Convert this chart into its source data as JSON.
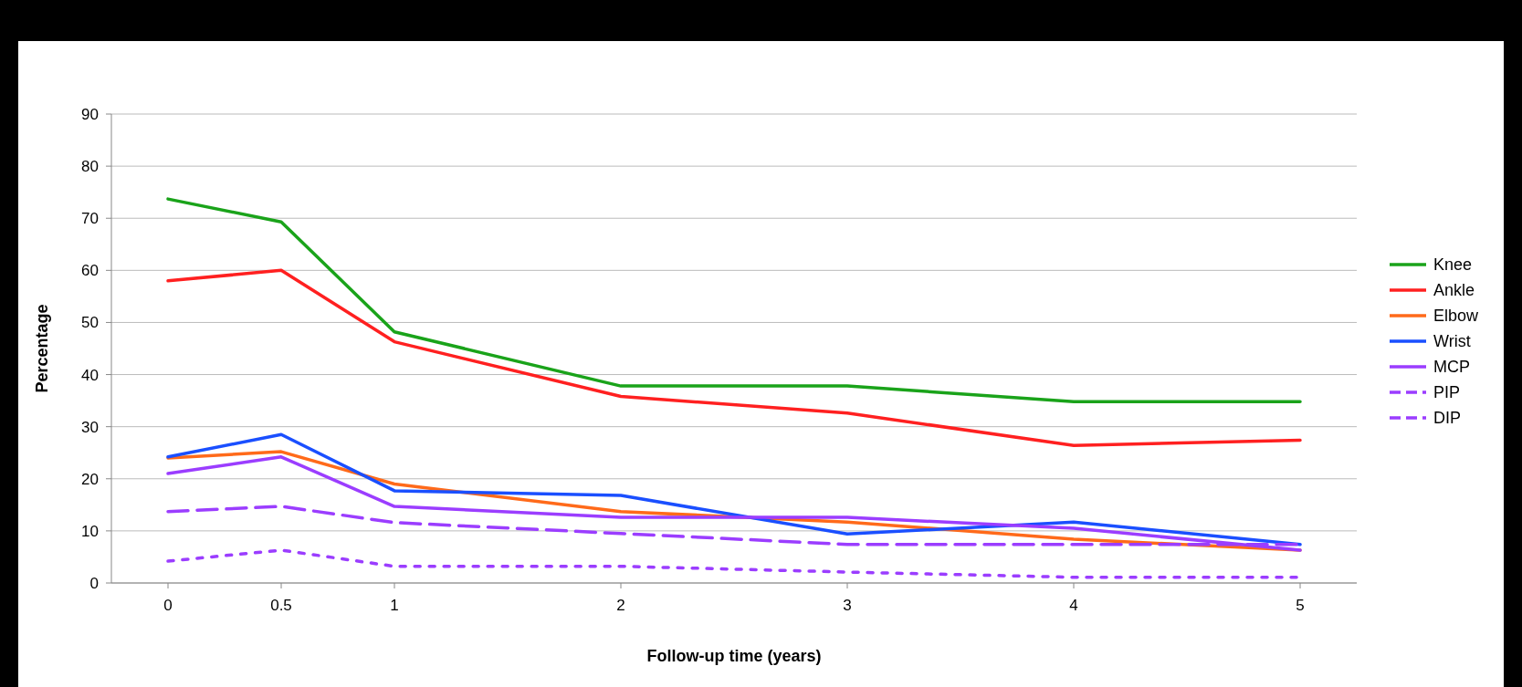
{
  "chart_data": {
    "type": "line",
    "xlabel": "Follow-up time (years)",
    "ylabel": "Percentage",
    "x": [
      0,
      0.5,
      1,
      2,
      3,
      4,
      5
    ],
    "xlim": [
      -0.25,
      5.25
    ],
    "xticks": [
      0,
      0.5,
      1,
      2,
      3,
      4,
      5
    ],
    "ylim": [
      0,
      90
    ],
    "yticks": [
      0,
      10,
      20,
      30,
      40,
      50,
      60,
      70,
      80,
      90
    ],
    "grid": "y",
    "legend": "right",
    "marker": "none",
    "series": [
      {
        "name": "Knee",
        "color": "#1aa31a",
        "line_style": "solid",
        "values": [
          73.7,
          69.3,
          48.2,
          37.8,
          37.8,
          34.8,
          34.8
        ]
      },
      {
        "name": "Ankle",
        "color": "#ff2020",
        "line_style": "solid",
        "values": [
          58,
          60,
          46.3,
          35.8,
          32.6,
          26.4,
          27.4
        ]
      },
      {
        "name": "Elbow",
        "color": "#ff6a1a",
        "line_style": "solid",
        "values": [
          24,
          25.2,
          19,
          13.7,
          11.7,
          8.4,
          6.3
        ]
      },
      {
        "name": "Wrist",
        "color": "#1a4fff",
        "line_style": "solid",
        "values": [
          24.2,
          28.5,
          17.7,
          16.8,
          9.4,
          11.7,
          7.4
        ]
      },
      {
        "name": "MCP",
        "color": "#9b3dff",
        "line_style": "solid",
        "values": [
          21,
          24.2,
          14.7,
          12.6,
          12.6,
          10.5,
          6.3
        ]
      },
      {
        "name": "PIP",
        "color": "#9b3dff",
        "line_style": "dashed",
        "values": [
          13.7,
          14.7,
          11.6,
          9.5,
          7.4,
          7.4,
          7.4
        ]
      },
      {
        "name": "DIP",
        "color": "#9b3dff",
        "line_style": "dotted",
        "values": [
          4.2,
          6.3,
          3.2,
          3.2,
          2.1,
          1.1,
          1.1
        ]
      }
    ]
  }
}
